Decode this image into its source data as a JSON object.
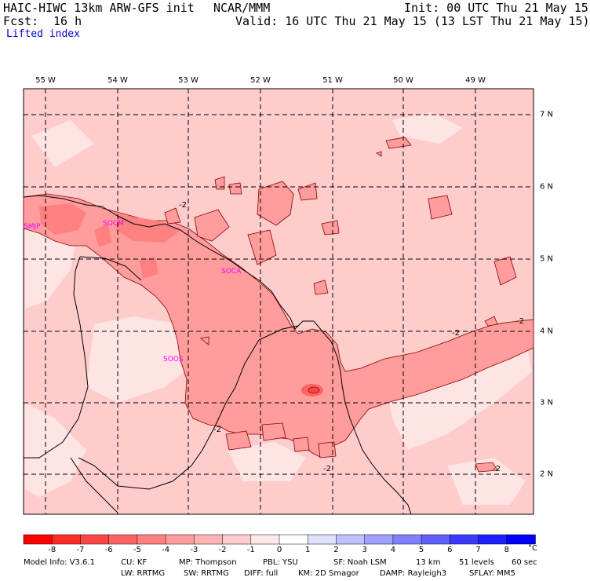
{
  "header": {
    "model": "HAIC-HIWC 13km ARW-GFS init",
    "org": "NCAR/MMM",
    "init": "Init: 00 UTC Thu 21 May 15",
    "fcst_label": "Fcst:",
    "fcst_value": "16 h",
    "valid": "Valid: 16 UTC Thu 21 May 15 (13 LST Thu 21 May 15)",
    "field": "Lifted index"
  },
  "axes": {
    "longitudes": [
      "55 W",
      "54 W",
      "53 W",
      "52 W",
      "51 W",
      "50 W",
      "49 W"
    ],
    "latitudes": [
      "7 N",
      "6 N",
      "5 N",
      "4 N",
      "3 N",
      "2 N"
    ]
  },
  "stations": [
    "SMJP",
    "SOCM",
    "SOCA",
    "SOOS"
  ],
  "contour_labels": [
    "-2",
    "-2",
    "-2",
    "-2",
    "-2",
    "-2"
  ],
  "colorbar": {
    "ticks": [
      "-8",
      "-7",
      "-6",
      "-5",
      "-4",
      "-3",
      "-2",
      "-1",
      "0",
      "1",
      "2",
      "3",
      "4",
      "5",
      "6",
      "7",
      "8"
    ],
    "unit": "°C",
    "colors": [
      "#ff0000",
      "#ff2a2a",
      "#ff4646",
      "#ff6464",
      "#ff8080",
      "#ff9c9c",
      "#ffb4b4",
      "#ffcccc",
      "#ffe8e8",
      "#ffffff",
      "#e0e0ff",
      "#c0c0ff",
      "#a0a0ff",
      "#8080ff",
      "#6060ff",
      "#3a3aff",
      "#1e1eff",
      "#0000ff"
    ]
  },
  "footer": {
    "line1": [
      "Model Info: V3.6.1",
      "CU: KF",
      "MP: Thompson",
      "PBL: YSU",
      "SF: Noah LSM",
      "13 km",
      "51 levels",
      "60 sec"
    ],
    "line2": [
      "LW: RRTMG",
      "SW: RRTMG",
      "DIFF: full",
      "KM: 2D Smagor",
      "DAMP: Rayleigh3",
      "SFLAY: MM5"
    ]
  }
}
